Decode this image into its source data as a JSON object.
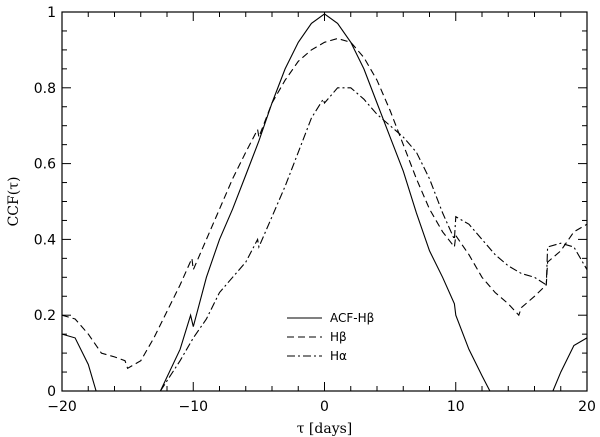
{
  "chart_data": {
    "type": "line",
    "xlabel": "τ [days]",
    "ylabel": "CCF(τ)",
    "xlim": [
      -20,
      20
    ],
    "ylim": [
      0,
      1
    ],
    "xticks": [
      -20,
      -10,
      0,
      10,
      20
    ],
    "yticks": [
      0,
      0.2,
      0.4,
      0.6,
      0.8,
      1
    ],
    "ytick_labels": [
      "0",
      "0.2",
      "0.4",
      "0.6",
      "0.8",
      "1"
    ],
    "legend_position": "lower-center",
    "series": [
      {
        "name": "ACF-Hβ",
        "style": "solid",
        "segments": [
          [
            [
              -20,
              0.15
            ],
            [
              -19,
              0.14
            ],
            [
              -18,
              0.07
            ],
            [
              -17.4,
              0.0
            ]
          ],
          [
            [
              -12.5,
              0.0
            ],
            [
              -11,
              0.11
            ],
            [
              -10.2,
              0.2
            ],
            [
              -10,
              0.17
            ],
            [
              -9,
              0.3
            ],
            [
              -8,
              0.4
            ],
            [
              -7,
              0.48
            ],
            [
              -6,
              0.57
            ],
            [
              -5,
              0.66
            ],
            [
              -4,
              0.76
            ],
            [
              -3,
              0.85
            ],
            [
              -2,
              0.92
            ],
            [
              -1,
              0.97
            ],
            [
              0,
              0.995
            ],
            [
              1,
              0.97
            ],
            [
              2,
              0.92
            ],
            [
              3,
              0.85
            ],
            [
              4,
              0.76
            ],
            [
              5,
              0.67
            ],
            [
              6,
              0.58
            ],
            [
              7,
              0.47
            ],
            [
              8,
              0.37
            ],
            [
              9,
              0.3
            ],
            [
              9.9,
              0.23
            ],
            [
              10,
              0.2
            ],
            [
              11,
              0.11
            ],
            [
              12,
              0.04
            ],
            [
              12.6,
              0.0
            ]
          ],
          [
            [
              17.4,
              0.0
            ],
            [
              18,
              0.05
            ],
            [
              19,
              0.12
            ],
            [
              20,
              0.14
            ]
          ]
        ]
      },
      {
        "name": "Hβ",
        "style": "dashed",
        "segments": [
          [
            [
              -20,
              0.2
            ],
            [
              -19,
              0.19
            ],
            [
              -18,
              0.15
            ],
            [
              -17,
              0.1
            ],
            [
              -16,
              0.09
            ],
            [
              -15.2,
              0.08
            ],
            [
              -15,
              0.06
            ],
            [
              -14,
              0.08
            ],
            [
              -13,
              0.14
            ],
            [
              -12,
              0.21
            ],
            [
              -11,
              0.28
            ],
            [
              -10.1,
              0.35
            ],
            [
              -10,
              0.32
            ],
            [
              -9,
              0.4
            ],
            [
              -8,
              0.48
            ],
            [
              -7,
              0.56
            ],
            [
              -6,
              0.63
            ],
            [
              -5.1,
              0.69
            ],
            [
              -5,
              0.67
            ],
            [
              -4,
              0.76
            ],
            [
              -3,
              0.82
            ],
            [
              -2,
              0.87
            ],
            [
              -1,
              0.9
            ],
            [
              0,
              0.92
            ],
            [
              1,
              0.93
            ],
            [
              2,
              0.92
            ],
            [
              3,
              0.88
            ],
            [
              4,
              0.82
            ],
            [
              5,
              0.74
            ],
            [
              6,
              0.65
            ],
            [
              7,
              0.56
            ],
            [
              8,
              0.48
            ],
            [
              9,
              0.42
            ],
            [
              9.9,
              0.38
            ],
            [
              10,
              0.41
            ],
            [
              11,
              0.36
            ],
            [
              12,
              0.3
            ],
            [
              13,
              0.26
            ],
            [
              14,
              0.23
            ],
            [
              14.8,
              0.2
            ],
            [
              15,
              0.22
            ],
            [
              16,
              0.25
            ],
            [
              16.9,
              0.28
            ],
            [
              17,
              0.34
            ],
            [
              18,
              0.37
            ],
            [
              19,
              0.42
            ],
            [
              20,
              0.44
            ]
          ]
        ]
      },
      {
        "name": "Hα",
        "style": "dashdot",
        "segments": [
          [
            [
              -12.5,
              0.0
            ],
            [
              -11,
              0.08
            ],
            [
              -10,
              0.14
            ],
            [
              -9,
              0.19
            ],
            [
              -8,
              0.26
            ],
            [
              -7,
              0.3
            ],
            [
              -6,
              0.34
            ],
            [
              -5.1,
              0.4
            ],
            [
              -5,
              0.38
            ],
            [
              -4,
              0.46
            ],
            [
              -3,
              0.54
            ],
            [
              -2,
              0.63
            ],
            [
              -1,
              0.72
            ],
            [
              -0.1,
              0.77
            ],
            [
              0,
              0.76
            ],
            [
              1,
              0.8
            ],
            [
              2,
              0.8
            ],
            [
              3,
              0.77
            ],
            [
              4,
              0.73
            ],
            [
              5,
              0.7
            ],
            [
              6,
              0.67
            ],
            [
              7,
              0.63
            ],
            [
              8,
              0.56
            ],
            [
              9,
              0.47
            ],
            [
              9.9,
              0.4
            ],
            [
              10,
              0.46
            ],
            [
              11,
              0.44
            ],
            [
              12,
              0.4
            ],
            [
              13,
              0.36
            ],
            [
              14,
              0.33
            ],
            [
              15,
              0.31
            ],
            [
              16,
              0.3
            ],
            [
              16.9,
              0.28
            ],
            [
              17,
              0.38
            ],
            [
              18,
              0.39
            ],
            [
              19,
              0.38
            ],
            [
              20,
              0.32
            ]
          ]
        ]
      }
    ]
  }
}
